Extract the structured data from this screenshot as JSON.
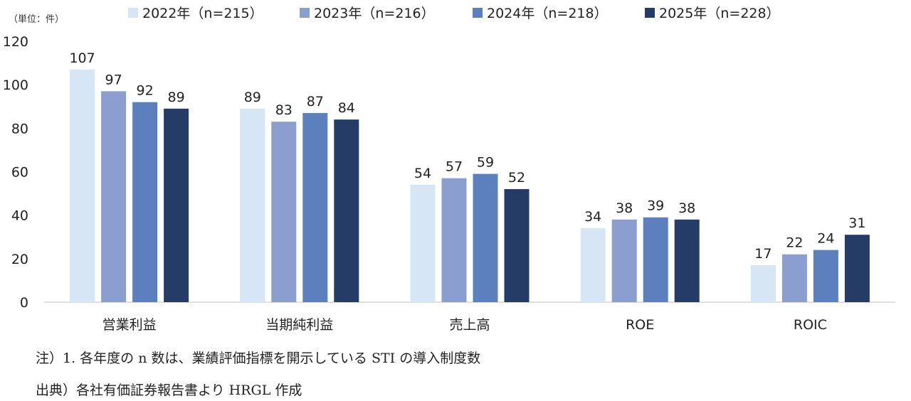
{
  "unit_label": "（単位：件）",
  "chart_data": {
    "type": "bar",
    "categories": [
      "営業利益",
      "当期純利益",
      "売上高",
      "ROE",
      "ROIC"
    ],
    "series": [
      {
        "name": "2022年（n=215）",
        "color": "#d6e6f5",
        "values": [
          107,
          89,
          54,
          34,
          17
        ]
      },
      {
        "name": "2023年（n=216）",
        "color": "#8a9fcf",
        "values": [
          97,
          83,
          57,
          38,
          22
        ]
      },
      {
        "name": "2024年（n=218）",
        "color": "#5b80bd",
        "values": [
          92,
          87,
          59,
          39,
          24
        ]
      },
      {
        "name": "2025年（n=228）",
        "color": "#253d66",
        "values": [
          89,
          84,
          52,
          38,
          31
        ]
      }
    ],
    "ylim": [
      0,
      120
    ],
    "yticks": [
      0,
      20,
      40,
      60,
      80,
      100,
      120
    ],
    "legend_position": "top",
    "grid": false
  },
  "notes": {
    "note1": "注）1. 各年度の n 数は、業績評価指標を開示している STI の導入制度数",
    "source": "出典）各社有価証券報告書より HRGL 作成"
  }
}
